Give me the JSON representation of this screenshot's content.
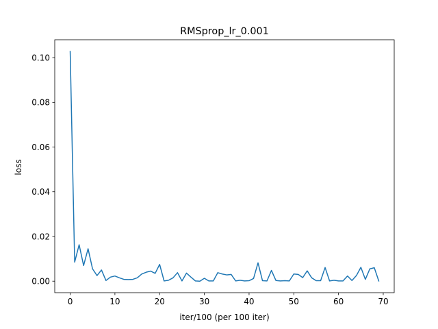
{
  "chart_data": {
    "type": "line",
    "title": "RMSprop_lr_0.001",
    "xlabel": "iter/100 (per 100 iter)",
    "ylabel": "loss",
    "xlim": [
      -3.45,
      72.45
    ],
    "ylim": [
      -0.00515,
      0.108
    ],
    "xticks": [
      0,
      10,
      20,
      30,
      40,
      50,
      60,
      70
    ],
    "yticks": [
      0.0,
      0.02,
      0.04,
      0.06,
      0.08,
      0.1
    ],
    "ytick_labels": [
      "0.00",
      "0.02",
      "0.04",
      "0.06",
      "0.08",
      "0.10"
    ],
    "grid": false,
    "series": [
      {
        "color": "#1f77b4",
        "x": [
          0,
          1,
          2,
          3,
          4,
          5,
          6,
          7,
          8,
          9,
          10,
          11,
          12,
          13,
          14,
          15,
          16,
          17,
          18,
          19,
          20,
          21,
          22,
          23,
          24,
          25,
          26,
          27,
          28,
          29,
          30,
          31,
          32,
          33,
          34,
          35,
          36,
          37,
          38,
          39,
          40,
          41,
          42,
          43,
          44,
          45,
          46,
          47,
          48,
          49,
          50,
          51,
          52,
          53,
          54,
          55,
          56,
          57,
          58,
          59,
          60,
          61,
          62,
          63,
          64,
          65,
          66,
          67,
          68,
          69
        ],
        "values": [
          0.1028,
          0.0085,
          0.0163,
          0.007,
          0.0145,
          0.0055,
          0.0025,
          0.005,
          0.0003,
          0.0018,
          0.0023,
          0.0015,
          0.0008,
          0.0007,
          0.0008,
          0.0015,
          0.0032,
          0.004,
          0.0045,
          0.0035,
          0.0075,
          0.0001,
          0.0004,
          0.0015,
          0.0038,
          0.0001,
          0.0036,
          0.0018,
          0.0001,
          0.0,
          0.0013,
          0.0001,
          0.0001,
          0.0038,
          0.0032,
          0.0028,
          0.003,
          0.0001,
          0.0004,
          0.0001,
          0.0002,
          0.0012,
          0.0082,
          0.0002,
          0.0001,
          0.0048,
          0.0003,
          0.0001,
          0.0002,
          0.0001,
          0.0032,
          0.003,
          0.0016,
          0.0046,
          0.0015,
          0.0002,
          0.0002,
          0.0061,
          0.0001,
          0.0004,
          0.0001,
          0.0001,
          0.0023,
          0.0003,
          0.0025,
          0.0062,
          0.0008,
          0.0055,
          0.006,
          0.0001
        ]
      }
    ]
  }
}
